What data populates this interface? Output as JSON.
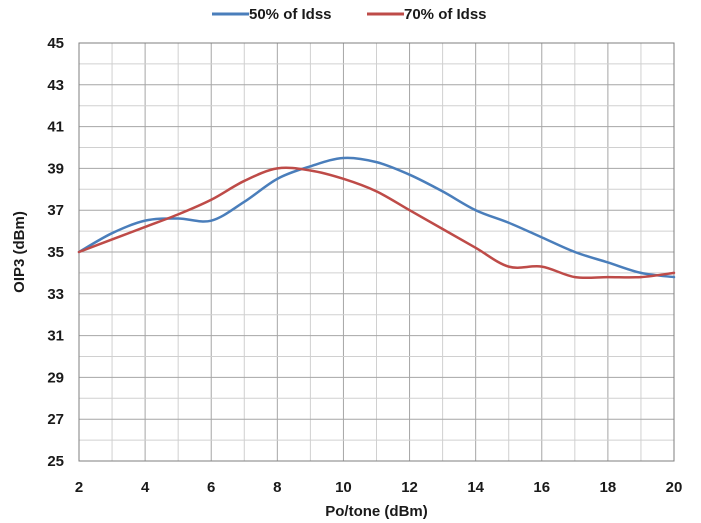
{
  "chart_data": {
    "type": "line",
    "xlabel": "Po/tone (dBm)",
    "ylabel": "OIP3 (dBm)",
    "xlim": [
      2,
      20
    ],
    "ylim": [
      25,
      45
    ],
    "xticks": [
      2,
      4,
      6,
      8,
      10,
      12,
      14,
      16,
      18,
      20
    ],
    "yticks": [
      25,
      27,
      29,
      31,
      33,
      35,
      37,
      39,
      41,
      43,
      45
    ],
    "x_minor_step": 1,
    "y_minor_step": 1,
    "grid": true,
    "legend_position": "top",
    "series": [
      {
        "name": "50% of Idss",
        "color": "#4a7ebb",
        "x": [
          2,
          3,
          4,
          5,
          6,
          7,
          8,
          9,
          10,
          11,
          12,
          13,
          14,
          15,
          16,
          17,
          18,
          19,
          20
        ],
        "y": [
          35.0,
          35.9,
          36.5,
          36.6,
          36.5,
          37.4,
          38.5,
          39.1,
          39.5,
          39.3,
          38.7,
          37.9,
          37.0,
          36.4,
          35.7,
          35.0,
          34.5,
          34.0,
          33.8
        ]
      },
      {
        "name": "70% of Idss",
        "color": "#be4b48",
        "x": [
          2,
          3,
          4,
          5,
          6,
          7,
          8,
          9,
          10,
          11,
          12,
          13,
          14,
          15,
          16,
          17,
          18,
          19,
          20
        ],
        "y": [
          35.0,
          35.6,
          36.2,
          36.8,
          37.5,
          38.4,
          39.0,
          38.9,
          38.5,
          37.9,
          37.0,
          36.1,
          35.2,
          34.3,
          34.3,
          33.8,
          33.8,
          33.8,
          34.0
        ]
      }
    ]
  }
}
